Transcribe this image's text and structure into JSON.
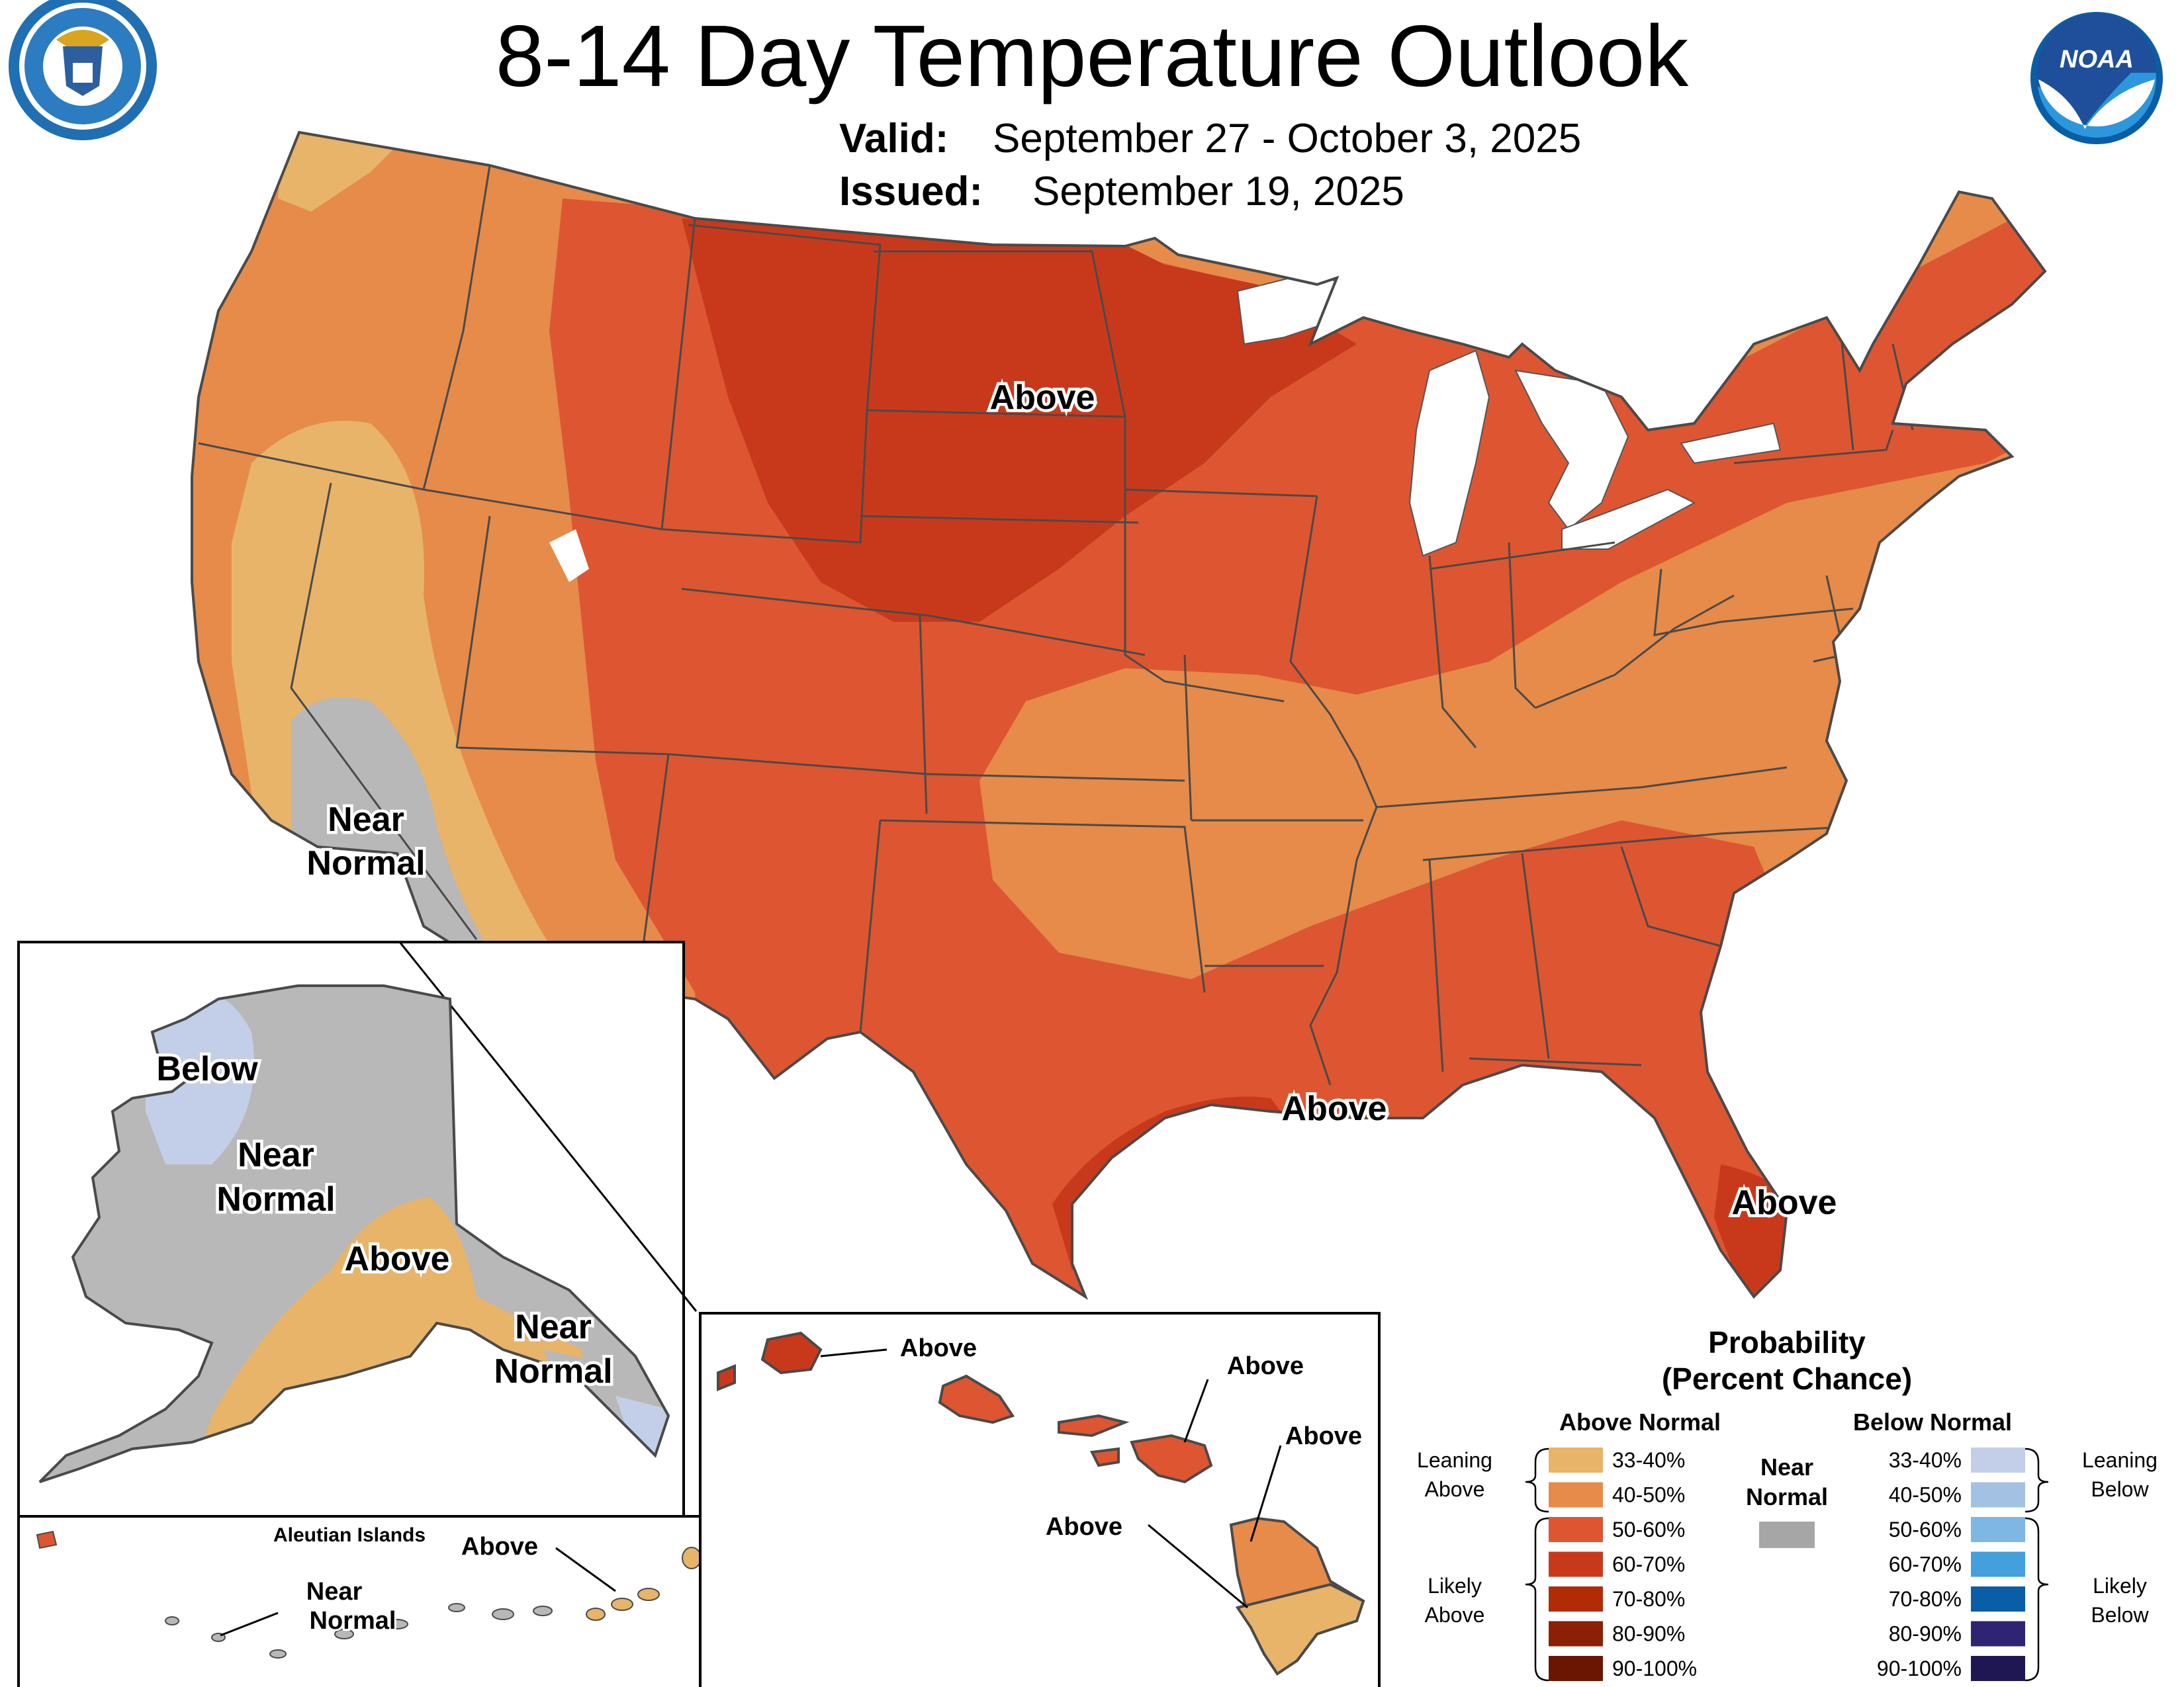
{
  "header": {
    "title": "8-14 Day Temperature Outlook",
    "valid_label": "Valid:",
    "valid_value": "September 27 - October 3, 2025",
    "issued_label": "Issued:",
    "issued_value": "September 19, 2025",
    "logo_left": "department-of-commerce-seal",
    "logo_right_text": "NOAA"
  },
  "colors": {
    "above_33_40": "#e8b46a",
    "above_40_50": "#e68b4a",
    "above_50_60": "#dd5631",
    "above_60_70": "#c8391c",
    "above_70_80": "#b02b06",
    "above_80_90": "#8c2004",
    "above_90_100": "#6b1602",
    "near_normal": "#a6a6a6",
    "near_normal_map": "#b8b8b8",
    "below_33_40": "#c3cfe8",
    "below_40_50": "#a3c2e3",
    "below_50_60": "#7eb6e4",
    "below_60_70": "#43a0dd",
    "below_70_80": "#0a5ea6",
    "below_80_90": "#2e2471",
    "below_90_100": "#1e1754",
    "great_lakes": "#ffffff",
    "state_lines": "#4a4a4a"
  },
  "map_labels": {
    "conus_north": "Above",
    "conus_gulf": "Above",
    "conus_florida": "Above",
    "conus_sw_line1": "Near",
    "conus_sw_line2": "Normal",
    "alaska_west": "Below",
    "alaska_center_line1": "Near",
    "alaska_center_line2": "Normal",
    "alaska_south": "Above",
    "alaska_se_line1": "Near",
    "alaska_se_line2": "Normal",
    "aleutian_title": "Aleutian Islands",
    "aleutian_east": "Above",
    "aleutian_west_line1": "Near",
    "aleutian_west_line2": "Normal",
    "hawaii_kauai": "Above",
    "hawaii_oahu": "Above",
    "hawaii_maui": "Above",
    "hawaii_big_island_north": "Above",
    "hawaii_big_island_west": "Above"
  },
  "legend": {
    "title_line1": "Probability",
    "title_line2": "(Percent Chance)",
    "above_header": "Above Normal",
    "below_header": "Below Normal",
    "near_line1": "Near",
    "near_line2": "Normal",
    "leaning_above_line1": "Leaning",
    "leaning_above_line2": "Above",
    "likely_above_line1": "Likely",
    "likely_above_line2": "Above",
    "leaning_below_line1": "Leaning",
    "leaning_below_line2": "Below",
    "likely_below_line1": "Likely",
    "likely_below_line2": "Below",
    "ranges": [
      "33-40%",
      "40-50%",
      "50-60%",
      "60-70%",
      "70-80%",
      "80-90%",
      "90-100%"
    ]
  }
}
